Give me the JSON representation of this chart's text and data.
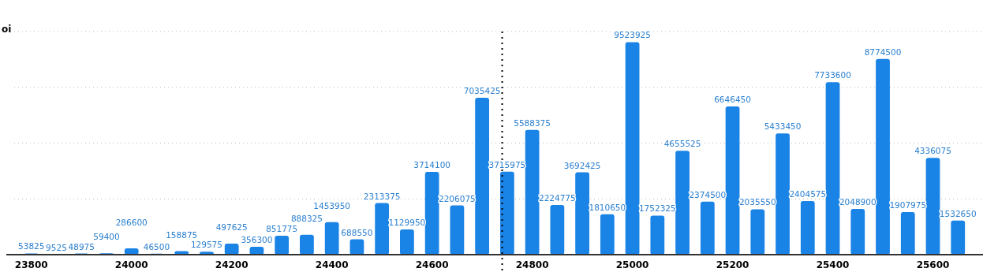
{
  "chart_data": {
    "type": "bar",
    "ylabel": "oi",
    "x": [
      23800,
      23850,
      23900,
      23950,
      24000,
      24050,
      24100,
      24150,
      24200,
      24250,
      24300,
      24350,
      24400,
      24450,
      24500,
      24550,
      24600,
      24650,
      24700,
      24750,
      24800,
      24850,
      24900,
      24950,
      25000,
      25050,
      25100,
      25150,
      25200,
      25250,
      25300,
      25350,
      25400,
      25450,
      25500,
      25550,
      25600,
      25650
    ],
    "values": [
      53825,
      9525,
      48975,
      59400,
      286600,
      46500,
      158875,
      129575,
      497625,
      356300,
      851775,
      888325,
      1453950,
      688550,
      2313375,
      1129950,
      3714100,
      2206075,
      7035425,
      3715975,
      5588375,
      2224775,
      3692425,
      1810650,
      9523925,
      1752325,
      4655525,
      2374500,
      6646450,
      2035550,
      5433450,
      2404575,
      7733600,
      2048900,
      8774500,
      1907975,
      4336075,
      1532650
    ],
    "color": "#1a83e6",
    "data_labels": true,
    "xlim": [
      23750,
      25700
    ],
    "xticks": [
      23800,
      24000,
      24200,
      24400,
      24600,
      24800,
      25000,
      25200,
      25400,
      25600
    ],
    "ylim": [
      0,
      10000000
    ],
    "yticks": [
      {
        "value": 2500000,
        "label": null
      },
      {
        "value": 5000000,
        "label": null
      },
      {
        "value": 7500000,
        "label": null
      },
      {
        "value": 10000000,
        "label": null
      }
    ],
    "tick_labels": "x",
    "grid": "y",
    "ref_lines": [
      {
        "axis": "x",
        "value": 24740,
        "color": "#000000",
        "line_style": "dotted"
      }
    ]
  }
}
